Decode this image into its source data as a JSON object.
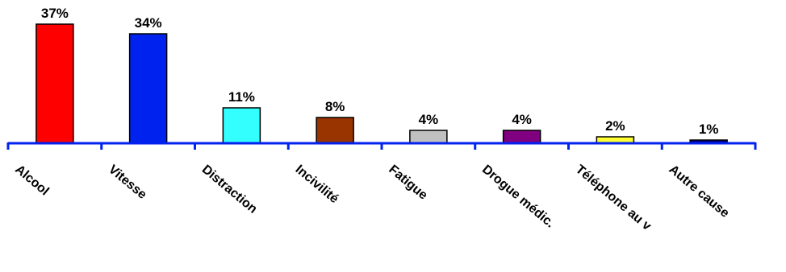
{
  "chart_data": {
    "type": "bar",
    "categories": [
      "Alcool",
      "Vitesse",
      "Distraction",
      "Incivilité",
      "Fatigue",
      "Drogue médic.",
      "Téléphone au v",
      "Autre cause"
    ],
    "values": [
      37,
      34,
      11,
      8,
      4,
      4,
      2,
      1
    ],
    "data_labels": [
      "37%",
      "34%",
      "11%",
      "8%",
      "4%",
      "4%",
      "2%",
      "1%"
    ],
    "colors": [
      "#ff0000",
      "#0022ee",
      "#33ffff",
      "#993300",
      "#c0c0c0",
      "#800080",
      "#ffff33",
      "#000080"
    ],
    "axis_color": "#0022ee",
    "ylim": [
      0,
      37
    ],
    "grid": false,
    "legend": "none",
    "title": "",
    "xlabel": "",
    "ylabel": ""
  }
}
